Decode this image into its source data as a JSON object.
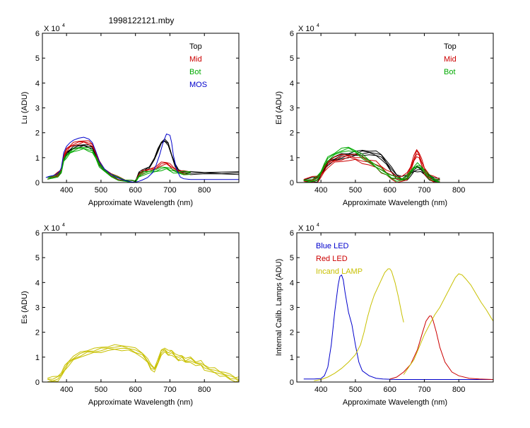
{
  "figure_title": "1998122121.mby",
  "chart_data": [
    {
      "type": "line",
      "id": "lu",
      "ylabel": "Lu (ADU)",
      "xlabel": "Approximate Wavelength (nm)",
      "exponent_label": "X 10",
      "exponent_power": "4",
      "xlim": [
        330,
        900
      ],
      "ylim": [
        0,
        6
      ],
      "xticks": [
        "400",
        "500",
        "600",
        "700",
        "800"
      ],
      "xtick_values": [
        400,
        500,
        600,
        700,
        800
      ],
      "yticks": [
        "0",
        "1",
        "2",
        "3",
        "4",
        "5",
        "6"
      ],
      "legend": [
        {
          "label": "Top",
          "color": "#000000"
        },
        {
          "label": "Mid",
          "color": "#cc0000"
        },
        {
          "label": "Bot",
          "color": "#00aa00"
        },
        {
          "label": "MOS",
          "color": "#0000cc"
        }
      ],
      "series": [
        {
          "name": "Top",
          "color": "#000000",
          "copies": 3,
          "spread": 0.04,
          "x": [
            345,
            360,
            375,
            385,
            392,
            400,
            410,
            420,
            435,
            450,
            465,
            475,
            485,
            495,
            510,
            530,
            550,
            570,
            590,
            600,
            610,
            620,
            640,
            655,
            665,
            675,
            685,
            695,
            705,
            715,
            725,
            740,
            760,
            800,
            850,
            900
          ],
          "y": [
            0.18,
            0.22,
            0.32,
            0.45,
            0.95,
            1.15,
            1.3,
            1.4,
            1.45,
            1.5,
            1.45,
            1.4,
            1.1,
            0.75,
            0.5,
            0.3,
            0.18,
            0.08,
            0.02,
            0.01,
            0.4,
            0.45,
            0.6,
            0.95,
            1.3,
            1.6,
            1.7,
            1.55,
            1.1,
            0.7,
            0.48,
            0.4,
            0.38,
            0.38,
            0.38,
            0.38
          ]
        },
        {
          "name": "Mid",
          "color": "#cc0000",
          "copies": 3,
          "spread": 0.05,
          "x": [
            345,
            360,
            375,
            385,
            392,
            400,
            410,
            420,
            435,
            450,
            465,
            475,
            485,
            495,
            510,
            530,
            550,
            570,
            590,
            600,
            610,
            620,
            640,
            660,
            675,
            690,
            700,
            710,
            725,
            740,
            760
          ],
          "y": [
            0.18,
            0.22,
            0.34,
            0.48,
            1.05,
            1.3,
            1.45,
            1.55,
            1.6,
            1.65,
            1.6,
            1.5,
            1.2,
            0.8,
            0.52,
            0.3,
            0.18,
            0.08,
            0.02,
            0.01,
            0.3,
            0.4,
            0.5,
            0.6,
            0.75,
            0.78,
            0.7,
            0.55,
            0.45,
            0.4,
            0.38
          ]
        },
        {
          "name": "Bot",
          "color": "#00aa00",
          "copies": 3,
          "spread": 0.05,
          "x": [
            345,
            360,
            375,
            385,
            392,
            400,
            410,
            420,
            435,
            450,
            465,
            475,
            485,
            495,
            510,
            530,
            550,
            570,
            590,
            600,
            610,
            620,
            640,
            660,
            675,
            690,
            700,
            710,
            725,
            740,
            760
          ],
          "y": [
            0.18,
            0.2,
            0.3,
            0.42,
            0.9,
            1.05,
            1.2,
            1.3,
            1.35,
            1.38,
            1.32,
            1.25,
            1.0,
            0.7,
            0.48,
            0.28,
            0.16,
            0.07,
            0.02,
            0.01,
            0.25,
            0.35,
            0.42,
            0.48,
            0.55,
            0.58,
            0.52,
            0.45,
            0.4,
            0.38,
            0.38
          ]
        },
        {
          "name": "MOS",
          "color": "#0000cc",
          "copies": 1,
          "spread": 0,
          "x": [
            340,
            350,
            360,
            370,
            380,
            385,
            392,
            400,
            410,
            420,
            435,
            450,
            465,
            475,
            485,
            495,
            510,
            530,
            550,
            570,
            590,
            600,
            610,
            620,
            635,
            650,
            660,
            670,
            680,
            690,
            700,
            705,
            710,
            720,
            730,
            740,
            760,
            800,
            850,
            900
          ],
          "y": [
            0.2,
            0.25,
            0.28,
            0.32,
            0.45,
            0.6,
            1.2,
            1.45,
            1.6,
            1.7,
            1.78,
            1.82,
            1.75,
            1.6,
            1.25,
            0.85,
            0.55,
            0.32,
            0.18,
            0.08,
            0.02,
            0.01,
            0.05,
            0.1,
            0.2,
            0.4,
            0.7,
            1.1,
            1.6,
            1.95,
            1.9,
            1.6,
            1.1,
            0.5,
            0.22,
            0.15,
            0.12,
            0.12,
            0.12,
            0.12
          ]
        }
      ]
    },
    {
      "type": "line",
      "id": "ed",
      "ylabel": "Ed  (ADU)",
      "xlabel": "Approximate Wavelength (nm)",
      "exponent_label": "X 10",
      "exponent_power": "4",
      "xlim": [
        330,
        900
      ],
      "ylim": [
        0,
        6
      ],
      "xticks": [
        "400",
        "500",
        "600",
        "700",
        "800"
      ],
      "xtick_values": [
        400,
        500,
        600,
        700,
        800
      ],
      "yticks": [
        "0",
        "1",
        "2",
        "3",
        "4",
        "5",
        "6"
      ],
      "legend": [
        {
          "label": "Top",
          "color": "#000000"
        },
        {
          "label": "Mid",
          "color": "#cc0000"
        },
        {
          "label": "Bot",
          "color": "#00aa00"
        }
      ],
      "series": [
        {
          "name": "Top",
          "color": "#000000",
          "copies": 4,
          "spread": 0.06,
          "x": [
            350,
            375,
            390,
            400,
            410,
            420,
            440,
            460,
            480,
            500,
            520,
            540,
            560,
            575,
            590,
            605,
            620,
            635,
            650,
            660,
            670,
            680,
            690,
            700,
            715,
            730,
            745
          ],
          "y": [
            0.05,
            0.08,
            0.15,
            0.35,
            0.6,
            0.8,
            0.95,
            1.05,
            1.1,
            1.15,
            1.2,
            1.2,
            1.15,
            1.05,
            0.8,
            0.5,
            0.25,
            0.15,
            0.2,
            0.35,
            0.5,
            0.55,
            0.52,
            0.4,
            0.22,
            0.1,
            0.05
          ]
        },
        {
          "name": "Mid",
          "color": "#cc0000",
          "copies": 4,
          "spread": 0.08,
          "x": [
            350,
            375,
            390,
            400,
            410,
            420,
            440,
            460,
            480,
            500,
            520,
            540,
            560,
            575,
            590,
            605,
            620,
            635,
            650,
            660,
            670,
            678,
            685,
            692,
            700,
            715,
            730,
            745
          ],
          "y": [
            0.05,
            0.08,
            0.15,
            0.3,
            0.55,
            0.75,
            0.9,
            0.98,
            1.02,
            1.0,
            0.92,
            0.82,
            0.7,
            0.55,
            0.4,
            0.25,
            0.15,
            0.12,
            0.25,
            0.55,
            0.95,
            1.2,
            1.1,
            0.8,
            0.5,
            0.2,
            0.08,
            0.05
          ]
        },
        {
          "name": "Bot",
          "color": "#00aa00",
          "copies": 3,
          "spread": 0.06,
          "x": [
            350,
            375,
            390,
            400,
            410,
            420,
            440,
            460,
            480,
            500,
            520,
            540,
            560,
            575,
            590,
            605,
            620,
            635,
            650,
            660,
            670,
            680,
            690,
            700,
            715,
            730,
            745
          ],
          "y": [
            0.05,
            0.08,
            0.18,
            0.4,
            0.7,
            0.95,
            1.15,
            1.3,
            1.35,
            1.25,
            1.05,
            0.85,
            0.65,
            0.5,
            0.35,
            0.22,
            0.14,
            0.12,
            0.22,
            0.4,
            0.6,
            0.7,
            0.62,
            0.45,
            0.22,
            0.1,
            0.05
          ]
        }
      ]
    },
    {
      "type": "line",
      "id": "es",
      "ylabel": "Es  (ADU)",
      "xlabel": "Approximate Wavelength (nm)",
      "exponent_label": "X 10",
      "exponent_power": "4",
      "xlim": [
        330,
        900
      ],
      "ylim": [
        0,
        6
      ],
      "xticks": [
        "400",
        "500",
        "600",
        "700",
        "800"
      ],
      "xtick_values": [
        400,
        500,
        600,
        700,
        800
      ],
      "yticks": [
        "0",
        "1",
        "2",
        "3",
        "4",
        "5",
        "6"
      ],
      "legend": [],
      "series": [
        {
          "name": "Es",
          "color": "#c8c000",
          "copies": 4,
          "spread": 0.06,
          "x": [
            345,
            360,
            375,
            385,
            395,
            405,
            420,
            440,
            460,
            480,
            500,
            520,
            540,
            560,
            580,
            600,
            620,
            635,
            645,
            655,
            665,
            675,
            685,
            695,
            705,
            715,
            725,
            735,
            745,
            760,
            775,
            790,
            800,
            815,
            830,
            845,
            860,
            875,
            890,
            900
          ],
          "y": [
            0.1,
            0.1,
            0.15,
            0.3,
            0.55,
            0.75,
            0.95,
            1.1,
            1.2,
            1.25,
            1.3,
            1.35,
            1.38,
            1.38,
            1.35,
            1.25,
            1.1,
            0.85,
            0.6,
            0.5,
            0.8,
            1.2,
            1.3,
            1.15,
            1.2,
            1.05,
            0.95,
            1.0,
            0.85,
            0.9,
            0.75,
            0.75,
            0.6,
            0.5,
            0.45,
            0.35,
            0.3,
            0.2,
            0.12,
            0.1
          ]
        }
      ]
    },
    {
      "type": "line",
      "id": "calib",
      "ylabel": "Internal Calib. Lamps (ADU)",
      "xlabel": "Approximate Wavelength (nm)",
      "exponent_label": "X 10",
      "exponent_power": "4",
      "xlim": [
        330,
        900
      ],
      "ylim": [
        0,
        6
      ],
      "xticks": [
        "400",
        "500",
        "600",
        "700",
        "800"
      ],
      "xtick_values": [
        400,
        500,
        600,
        700,
        800
      ],
      "yticks": [
        "0",
        "1",
        "2",
        "3",
        "4",
        "5",
        "6"
      ],
      "legend": [
        {
          "label": "Blue LED",
          "color": "#0000cc"
        },
        {
          "label": "Red LED",
          "color": "#cc0000"
        },
        {
          "label": "Incand LAMP",
          "color": "#c8c000"
        }
      ],
      "series": [
        {
          "name": "Blue LED",
          "color": "#0000cc",
          "copies": 1,
          "spread": 0,
          "x": [
            350,
            380,
            400,
            410,
            420,
            430,
            440,
            450,
            455,
            460,
            465,
            470,
            480,
            490,
            500,
            510,
            520,
            540,
            560,
            580,
            620,
            700,
            800,
            900
          ],
          "y": [
            0.12,
            0.12,
            0.14,
            0.25,
            0.6,
            1.5,
            2.8,
            3.9,
            4.25,
            4.3,
            4.1,
            3.6,
            2.8,
            2.3,
            1.5,
            0.8,
            0.45,
            0.25,
            0.15,
            0.12,
            0.1,
            0.1,
            0.1,
            0.1
          ]
        },
        {
          "name": "Red LED",
          "color": "#cc0000",
          "copies": 1,
          "spread": 0,
          "x": [
            600,
            620,
            640,
            660,
            680,
            695,
            705,
            715,
            720,
            725,
            735,
            745,
            760,
            780,
            800,
            830,
            860,
            900
          ],
          "y": [
            0.12,
            0.2,
            0.4,
            0.7,
            1.3,
            2.0,
            2.45,
            2.65,
            2.65,
            2.5,
            2.0,
            1.4,
            0.8,
            0.4,
            0.25,
            0.15,
            0.12,
            0.1
          ]
        },
        {
          "name": "Incand LAMP",
          "color": "#c8c000",
          "copies": 1,
          "spread": 0,
          "x": [
            380,
            400,
            420,
            440,
            460,
            480,
            500,
            515,
            525,
            535,
            545,
            555,
            565,
            575,
            585,
            595,
            600,
            605,
            615,
            625,
            635,
            640
          ],
          "y": [
            0.05,
            0.1,
            0.2,
            0.35,
            0.55,
            0.8,
            1.1,
            1.5,
            2.0,
            2.6,
            3.1,
            3.5,
            3.8,
            4.1,
            4.4,
            4.55,
            4.55,
            4.45,
            4.0,
            3.4,
            2.7,
            2.4
          ]
        },
        {
          "name": "Incand LAMP (red range)",
          "color": "#c8c000",
          "copies": 1,
          "spread": 0,
          "x": [
            640,
            655,
            670,
            685,
            700,
            715,
            730,
            745,
            760,
            775,
            790,
            800,
            810,
            820,
            835,
            850,
            865,
            880,
            895,
            900
          ],
          "y": [
            0.3,
            0.6,
            0.9,
            1.4,
            1.9,
            2.3,
            2.7,
            3.0,
            3.4,
            3.8,
            4.2,
            4.35,
            4.3,
            4.15,
            3.9,
            3.55,
            3.2,
            2.9,
            2.55,
            2.45
          ]
        }
      ]
    }
  ]
}
